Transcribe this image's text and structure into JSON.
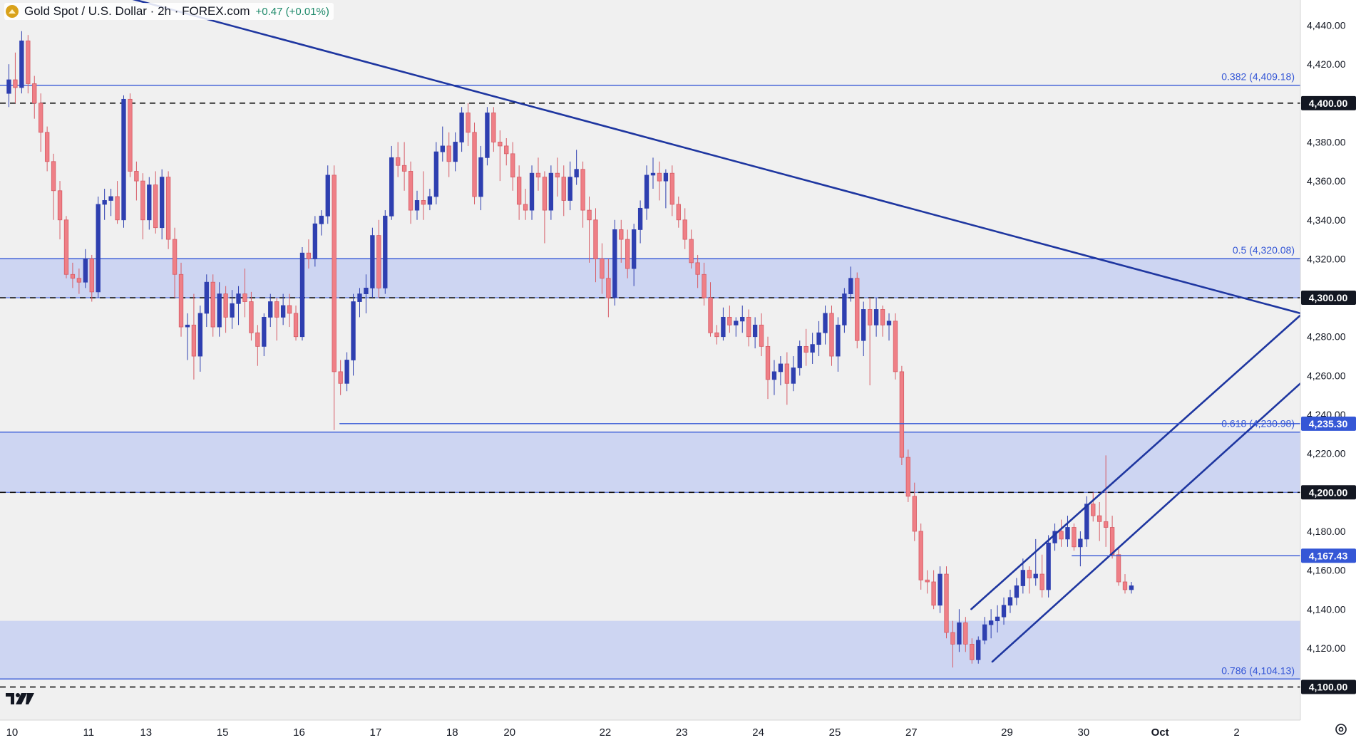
{
  "header": {
    "symbol": "Gold Spot / U.S. Dollar · 2h · FOREX.com",
    "change": "+0.47 (+0.01%)",
    "logo_icon": "gold-coin-icon"
  },
  "colors": {
    "up": "#2e3fb0",
    "down": "#ef7f86",
    "zone_fill": "#c7d0f2",
    "zone_line": "#3557d6",
    "trendline": "#1e36a0",
    "dashed": "#111111",
    "label_text": "#3557d6"
  },
  "chart_data": {
    "type": "candlestick",
    "title": "Gold Spot / U.S. Dollar · 2h · FOREX.com",
    "y_ticks": [
      "4,100.00",
      "4,120.00",
      "4,140.00",
      "4,160.00",
      "4,180.00",
      "4,200.00",
      "4,220.00",
      "4,240.00",
      "4,260.00",
      "4,280.00",
      "4,300.00",
      "4,320.00",
      "4,340.00",
      "4,360.00",
      "4,380.00",
      "4,400.00",
      "4,420.00",
      "4,440.00"
    ],
    "y_tick_values": [
      4100,
      4120,
      4140,
      4160,
      4180,
      4200,
      4220,
      4240,
      4260,
      4280,
      4300,
      4320,
      4340,
      4360,
      4380,
      4400,
      4420,
      4440
    ],
    "ylim": [
      4083,
      4453
    ],
    "x_ticks": [
      {
        "label": "10",
        "bar": 1
      },
      {
        "label": "11",
        "bar": 13
      },
      {
        "label": "13",
        "bar": 22
      },
      {
        "label": "15",
        "bar": 34
      },
      {
        "label": "16",
        "bar": 46
      },
      {
        "label": "17",
        "bar": 58
      },
      {
        "label": "18",
        "bar": 70
      },
      {
        "label": "20",
        "bar": 79
      },
      {
        "label": "22",
        "bar": 94
      },
      {
        "label": "23",
        "bar": 106
      },
      {
        "label": "24",
        "bar": 118
      },
      {
        "label": "25",
        "bar": 130
      },
      {
        "label": "27",
        "bar": 142
      },
      {
        "label": "29",
        "bar": 157
      },
      {
        "label": "30",
        "bar": 169
      },
      {
        "label": "Oct",
        "bar": 181
      },
      {
        "label": "2",
        "bar": 193
      }
    ],
    "x_range": [
      0,
      203
    ],
    "candles": [
      [
        4405,
        4420,
        4398,
        4412
      ],
      [
        4412,
        4426,
        4400,
        4408
      ],
      [
        4408,
        4437,
        4405,
        4432
      ],
      [
        4432,
        4435,
        4405,
        4410
      ],
      [
        4410,
        4414,
        4392,
        4400
      ],
      [
        4400,
        4405,
        4375,
        4385
      ],
      [
        4385,
        4388,
        4365,
        4370
      ],
      [
        4370,
        4374,
        4340,
        4355
      ],
      [
        4355,
        4360,
        4330,
        4340
      ],
      [
        4340,
        4342,
        4310,
        4312
      ],
      [
        4312,
        4318,
        4305,
        4310
      ],
      [
        4310,
        4315,
        4302,
        4308
      ],
      [
        4308,
        4325,
        4305,
        4320
      ],
      [
        4320,
        4322,
        4298,
        4303
      ],
      [
        4303,
        4352,
        4300,
        4348
      ],
      [
        4348,
        4356,
        4340,
        4350
      ],
      [
        4350,
        4356,
        4342,
        4352
      ],
      [
        4352,
        4360,
        4338,
        4340
      ],
      [
        4340,
        4404,
        4336,
        4402
      ],
      [
        4402,
        4405,
        4362,
        4365
      ],
      [
        4365,
        4370,
        4350,
        4360
      ],
      [
        4360,
        4364,
        4330,
        4340
      ],
      [
        4340,
        4362,
        4335,
        4358
      ],
      [
        4358,
        4365,
        4333,
        4336
      ],
      [
        4336,
        4366,
        4330,
        4362
      ],
      [
        4362,
        4365,
        4325,
        4330
      ],
      [
        4330,
        4336,
        4300,
        4312
      ],
      [
        4312,
        4318,
        4280,
        4285
      ],
      [
        4285,
        4292,
        4268,
        4286
      ],
      [
        4286,
        4302,
        4258,
        4270
      ],
      [
        4270,
        4296,
        4262,
        4292
      ],
      [
        4292,
        4312,
        4285,
        4308
      ],
      [
        4308,
        4312,
        4280,
        4285
      ],
      [
        4285,
        4308,
        4280,
        4302
      ],
      [
        4302,
        4306,
        4282,
        4290
      ],
      [
        4290,
        4304,
        4284,
        4297
      ],
      [
        4297,
        4306,
        4286,
        4302
      ],
      [
        4302,
        4315,
        4290,
        4298
      ],
      [
        4298,
        4303,
        4278,
        4282
      ],
      [
        4282,
        4286,
        4265,
        4275
      ],
      [
        4275,
        4292,
        4270,
        4290
      ],
      [
        4290,
        4302,
        4285,
        4298
      ],
      [
        4298,
        4300,
        4278,
        4290
      ],
      [
        4290,
        4302,
        4286,
        4296
      ],
      [
        4296,
        4302,
        4285,
        4292
      ],
      [
        4292,
        4296,
        4278,
        4280
      ],
      [
        4280,
        4326,
        4278,
        4323
      ],
      [
        4323,
        4330,
        4315,
        4320
      ],
      [
        4320,
        4342,
        4316,
        4338
      ],
      [
        4338,
        4345,
        4332,
        4342
      ],
      [
        4342,
        4368,
        4338,
        4363
      ],
      [
        4363,
        4368,
        4232,
        4262
      ],
      [
        4262,
        4268,
        4250,
        4256
      ],
      [
        4256,
        4272,
        4252,
        4268
      ],
      [
        4268,
        4302,
        4260,
        4298
      ],
      [
        4298,
        4305,
        4290,
        4302
      ],
      [
        4302,
        4312,
        4292,
        4305
      ],
      [
        4305,
        4336,
        4300,
        4332
      ],
      [
        4332,
        4340,
        4300,
        4305
      ],
      [
        4305,
        4345,
        4302,
        4342
      ],
      [
        4342,
        4378,
        4340,
        4372
      ],
      [
        4372,
        4380,
        4362,
        4368
      ],
      [
        4368,
        4380,
        4355,
        4365
      ],
      [
        4365,
        4370,
        4338,
        4345
      ],
      [
        4345,
        4355,
        4340,
        4350
      ],
      [
        4350,
        4365,
        4340,
        4348
      ],
      [
        4348,
        4356,
        4345,
        4352
      ],
      [
        4352,
        4380,
        4348,
        4375
      ],
      [
        4375,
        4388,
        4370,
        4378
      ],
      [
        4378,
        4385,
        4362,
        4370
      ],
      [
        4370,
        4385,
        4365,
        4380
      ],
      [
        4380,
        4398,
        4375,
        4395
      ],
      [
        4395,
        4400,
        4378,
        4385
      ],
      [
        4385,
        4390,
        4348,
        4352
      ],
      [
        4352,
        4378,
        4345,
        4372
      ],
      [
        4372,
        4398,
        4368,
        4395
      ],
      [
        4395,
        4398,
        4375,
        4380
      ],
      [
        4380,
        4386,
        4360,
        4378
      ],
      [
        4378,
        4382,
        4368,
        4374
      ],
      [
        4374,
        4380,
        4355,
        4362
      ],
      [
        4362,
        4368,
        4340,
        4348
      ],
      [
        4348,
        4356,
        4340,
        4345
      ],
      [
        4345,
        4368,
        4340,
        4364
      ],
      [
        4364,
        4372,
        4355,
        4362
      ],
      [
        4362,
        4365,
        4328,
        4345
      ],
      [
        4345,
        4368,
        4340,
        4364
      ],
      [
        4364,
        4372,
        4352,
        4362
      ],
      [
        4362,
        4368,
        4342,
        4350
      ],
      [
        4350,
        4370,
        4345,
        4362
      ],
      [
        4362,
        4376,
        4358,
        4366
      ],
      [
        4366,
        4370,
        4336,
        4345
      ],
      [
        4345,
        4352,
        4318,
        4340
      ],
      [
        4340,
        4346,
        4308,
        4320
      ],
      [
        4320,
        4328,
        4302,
        4310
      ],
      [
        4310,
        4320,
        4290,
        4300
      ],
      [
        4300,
        4340,
        4296,
        4335
      ],
      [
        4335,
        4340,
        4318,
        4330
      ],
      [
        4330,
        4335,
        4310,
        4315
      ],
      [
        4315,
        4338,
        4306,
        4335
      ],
      [
        4335,
        4350,
        4328,
        4346
      ],
      [
        4346,
        4368,
        4340,
        4363
      ],
      [
        4363,
        4372,
        4356,
        4364
      ],
      [
        4364,
        4370,
        4350,
        4360
      ],
      [
        4360,
        4366,
        4346,
        4364
      ],
      [
        4364,
        4368,
        4342,
        4348
      ],
      [
        4348,
        4352,
        4336,
        4340
      ],
      [
        4340,
        4346,
        4325,
        4330
      ],
      [
        4330,
        4335,
        4315,
        4318
      ],
      [
        4318,
        4322,
        4305,
        4312
      ],
      [
        4312,
        4318,
        4296,
        4300
      ],
      [
        4300,
        4308,
        4280,
        4282
      ],
      [
        4282,
        4286,
        4276,
        4280
      ],
      [
        4280,
        4295,
        4278,
        4290
      ],
      [
        4290,
        4296,
        4282,
        4286
      ],
      [
        4286,
        4290,
        4280,
        4288
      ],
      [
        4288,
        4296,
        4282,
        4290
      ],
      [
        4290,
        4294,
        4275,
        4280
      ],
      [
        4280,
        4290,
        4274,
        4286
      ],
      [
        4286,
        4292,
        4270,
        4275
      ],
      [
        4275,
        4280,
        4248,
        4258
      ],
      [
        4258,
        4268,
        4250,
        4262
      ],
      [
        4262,
        4270,
        4255,
        4266
      ],
      [
        4266,
        4272,
        4245,
        4256
      ],
      [
        4256,
        4270,
        4252,
        4264
      ],
      [
        4264,
        4278,
        4260,
        4275
      ],
      [
        4275,
        4284,
        4265,
        4272
      ],
      [
        4272,
        4282,
        4266,
        4276
      ],
      [
        4276,
        4288,
        4270,
        4282
      ],
      [
        4282,
        4296,
        4276,
        4292
      ],
      [
        4292,
        4296,
        4265,
        4270
      ],
      [
        4270,
        4290,
        4262,
        4286
      ],
      [
        4286,
        4305,
        4282,
        4302
      ],
      [
        4302,
        4316,
        4298,
        4310
      ],
      [
        4310,
        4313,
        4274,
        4278
      ],
      [
        4278,
        4298,
        4270,
        4294
      ],
      [
        4294,
        4300,
        4255,
        4286
      ],
      [
        4286,
        4300,
        4280,
        4294
      ],
      [
        4294,
        4296,
        4280,
        4286
      ],
      [
        4286,
        4292,
        4278,
        4288
      ],
      [
        4288,
        4292,
        4258,
        4262
      ],
      [
        4262,
        4265,
        4214,
        4218
      ],
      [
        4218,
        4222,
        4195,
        4198
      ],
      [
        4198,
        4205,
        4175,
        4180
      ],
      [
        4180,
        4184,
        4150,
        4155
      ],
      [
        4155,
        4160,
        4148,
        4154
      ],
      [
        4154,
        4160,
        4140,
        4142
      ],
      [
        4142,
        4162,
        4138,
        4158
      ],
      [
        4158,
        4162,
        4125,
        4128
      ],
      [
        4128,
        4134,
        4110,
        4122
      ],
      [
        4122,
        4140,
        4118,
        4133
      ],
      [
        4133,
        4136,
        4118,
        4122
      ],
      [
        4122,
        4125,
        4112,
        4114
      ],
      [
        4114,
        4126,
        4112,
        4124
      ],
      [
        4124,
        4136,
        4122,
        4132
      ],
      [
        4132,
        4140,
        4125,
        4134
      ],
      [
        4134,
        4142,
        4128,
        4136
      ],
      [
        4136,
        4146,
        4132,
        4142
      ],
      [
        4142,
        4150,
        4138,
        4146
      ],
      [
        4146,
        4156,
        4142,
        4152
      ],
      [
        4152,
        4166,
        4148,
        4160
      ],
      [
        4160,
        4162,
        4148,
        4156
      ],
      [
        4156,
        4176,
        4152,
        4158
      ],
      [
        4158,
        4168,
        4146,
        4150
      ],
      [
        4150,
        4178,
        4146,
        4174
      ],
      [
        4174,
        4184,
        4170,
        4180
      ],
      [
        4180,
        4186,
        4172,
        4176
      ],
      [
        4176,
        4188,
        4172,
        4182
      ],
      [
        4182,
        4184,
        4170,
        4172
      ],
      [
        4172,
        4180,
        4162,
        4176
      ],
      [
        4176,
        4198,
        4172,
        4194
      ],
      [
        4194,
        4200,
        4185,
        4188
      ],
      [
        4188,
        4195,
        4175,
        4185
      ],
      [
        4185,
        4219,
        4172,
        4182
      ],
      [
        4182,
        4188,
        4166,
        4168
      ],
      [
        4168,
        4172,
        4152,
        4154
      ],
      [
        4154,
        4158,
        4148,
        4150
      ],
      [
        4150,
        4154,
        4148,
        4152
      ]
    ],
    "horizontal_lines": [
      {
        "price": 4409.18,
        "label": "0.382 (4,409.18)",
        "style": "fib"
      },
      {
        "price": 4320.08,
        "label": "0.5 (4,320.08)",
        "style": "fib"
      },
      {
        "price": 4230.98,
        "label": "0.618 (4,230.98)",
        "style": "fib"
      },
      {
        "price": 4104.13,
        "label": "0.786 (4,104.13)",
        "style": "fib"
      }
    ],
    "dashed_levels": [
      4400,
      4300,
      4200,
      4100
    ],
    "zones": [
      {
        "from": 4300,
        "to": 4320.08
      },
      {
        "from": 4200,
        "to": 4230.98
      },
      {
        "from": 4104.13,
        "to": 4134
      }
    ],
    "price_tags": [
      {
        "price": 4400,
        "label": "4,400.00",
        "style": "dark"
      },
      {
        "price": 4300,
        "label": "4,300.00",
        "style": "dark"
      },
      {
        "price": 4235.3,
        "label": "4,235.30",
        "style": "blue"
      },
      {
        "price": 4200,
        "label": "4,200.00",
        "style": "dark"
      },
      {
        "price": 4167.43,
        "label": "4,167.43",
        "style": "blue"
      },
      {
        "price": 4100,
        "label": "4,100.00",
        "style": "dark"
      }
    ],
    "segments": [
      {
        "name": "descending-trendline",
        "x1": 0,
        "y1": 4471,
        "x2": 203,
        "y2": 4292
      },
      {
        "name": "channel-upper-line",
        "x1": 151.4,
        "y1": 4140,
        "x2": 203,
        "y2": 4291
      },
      {
        "name": "channel-lower-line",
        "x1": 154.7,
        "y1": 4113,
        "x2": 203,
        "y2": 4256
      },
      {
        "name": "support-line-4235",
        "x1": 52.4,
        "y1": 4235.3,
        "x2": 203,
        "y2": 4235.3
      },
      {
        "name": "support-line-4167",
        "x1": 167.2,
        "y1": 4167.43,
        "x2": 203,
        "y2": 4167.43
      }
    ]
  }
}
